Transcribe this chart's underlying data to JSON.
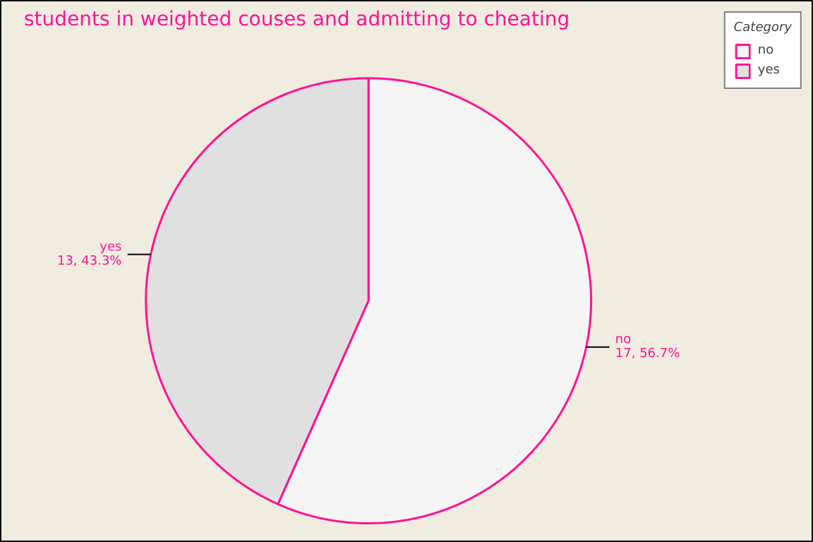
{
  "chart_data": {
    "type": "pie",
    "title": "students in weighted couses and admitting to cheating",
    "categories": [
      "no",
      "yes"
    ],
    "values": [
      17,
      13
    ],
    "value_labels": [
      "17, 56.7%",
      "13, 43.3%"
    ],
    "colors": [
      "#f5f5f5",
      "#e0e0e0"
    ],
    "legend_title": "Category",
    "legend": "top right"
  }
}
